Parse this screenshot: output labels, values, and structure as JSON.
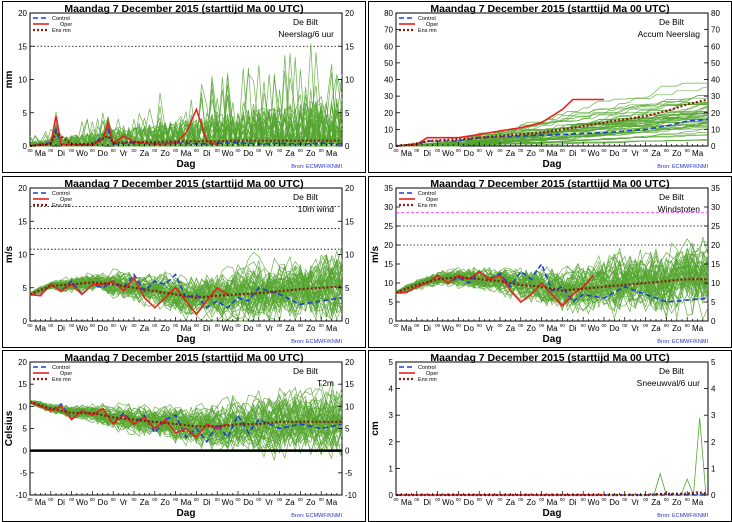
{
  "colors": {
    "control": "#1f3fd6",
    "oper": "#e8231e",
    "ens_mean": "#8b1c12",
    "members": "#55a630",
    "source": "#2233cc",
    "threshold": "#ff33ff"
  },
  "legend": {
    "control": "Control",
    "oper": "Oper",
    "ens_mean": "Ens mn"
  },
  "shared": {
    "header": "Maandag    7 December  2015   (starttijd  Ma 00 UTC)",
    "location": "De Bilt",
    "source": "Bron: ECMWF/KNMI",
    "xlabel": "Dag",
    "day_labels": [
      "Ma",
      "Di",
      "Wo",
      "Do",
      "Vr",
      "Za",
      "Zo",
      "Ma",
      "Di",
      "Wo",
      "Do",
      "Vr",
      "Za",
      "Zo",
      "Ma"
    ],
    "hour_tick_label": "00"
  },
  "chart_data": [
    {
      "id": "precip",
      "type": "line",
      "title": "Neerslag/6 uur",
      "ylabel": "mm",
      "ylim": [
        0,
        20
      ],
      "yticks": [
        0,
        5,
        10,
        15,
        20
      ],
      "dotted_lines": [
        15
      ],
      "series": [
        {
          "name": "Control",
          "x": [
            0,
            0.5,
            1,
            1.25,
            1.5,
            2,
            3,
            3.5,
            3.75,
            4,
            5,
            6,
            7,
            8,
            9,
            10,
            11,
            12,
            13,
            14,
            15
          ],
          "y": [
            0,
            0.3,
            0.5,
            2.5,
            0.3,
            0.2,
            0.1,
            1.5,
            2.5,
            0.3,
            0.5,
            0.3,
            0.5,
            0.3,
            0.4,
            0.5,
            0.3,
            0.4,
            0.3,
            0.4,
            0.3
          ]
        },
        {
          "name": "Oper",
          "x": [
            0,
            0.5,
            1,
            1.25,
            1.5,
            2,
            3,
            3.5,
            3.75,
            4,
            4.5,
            5,
            6,
            7,
            7.5,
            8,
            8.5,
            9
          ],
          "y": [
            0,
            0.2,
            0.4,
            4.5,
            0.3,
            0.2,
            0.1,
            1.0,
            3.5,
            0.4,
            1.5,
            0.6,
            0.3,
            0.4,
            2.0,
            5.5,
            0.8,
            0.2
          ]
        },
        {
          "name": "Ens mn",
          "x": [
            0,
            1,
            1.25,
            2,
            3,
            3.75,
            4,
            5,
            6,
            7,
            8,
            9,
            10,
            11,
            12,
            13,
            14,
            15
          ],
          "y": [
            0,
            0.3,
            2.0,
            0.3,
            0.3,
            1.5,
            0.5,
            0.6,
            0.6,
            0.7,
            0.7,
            0.7,
            0.8,
            0.8,
            0.8,
            0.8,
            0.8,
            0.8
          ]
        }
      ]
    },
    {
      "id": "accum",
      "type": "line",
      "title": "Accum Neerslag",
      "ylabel": "",
      "ylim": [
        0,
        80
      ],
      "yticks": [
        0,
        10,
        20,
        30,
        40,
        50,
        60,
        70,
        80
      ],
      "dotted_lines": [],
      "series": [
        {
          "name": "Control",
          "x": [
            0,
            1,
            1.5,
            3,
            4,
            6,
            8,
            10,
            12,
            13,
            14,
            15
          ],
          "y": [
            0,
            1,
            3,
            3,
            5,
            6,
            7,
            8,
            10,
            12,
            15,
            16
          ]
        },
        {
          "name": "Oper",
          "x": [
            0,
            1,
            1.5,
            3,
            4,
            5,
            6,
            7,
            8,
            8.5,
            9,
            10
          ],
          "y": [
            0,
            1,
            5,
            5,
            7,
            9,
            11,
            14,
            22,
            28,
            28,
            28
          ]
        },
        {
          "name": "Ens mn",
          "x": [
            0,
            1,
            1.5,
            3,
            4,
            5,
            6,
            7,
            8,
            9,
            10,
            11,
            12,
            13,
            14,
            15
          ],
          "y": [
            0,
            1,
            3,
            4,
            5,
            6,
            7,
            8,
            10,
            12,
            14,
            16,
            18,
            21,
            25,
            28
          ]
        }
      ]
    },
    {
      "id": "wind",
      "type": "line",
      "title": "10m wind",
      "ylabel": "m/s",
      "ylim": [
        0,
        20
      ],
      "yticks": [
        0,
        5,
        10,
        15,
        20
      ],
      "dotted_lines": [
        10.8,
        13.9,
        17.2
      ],
      "series": [
        {
          "name": "Control",
          "x": [
            0,
            0.5,
            1,
            1.5,
            2,
            2.5,
            3,
            3.5,
            4,
            4.5,
            5,
            5.5,
            6,
            6.5,
            7,
            7.5,
            8,
            8.5,
            9,
            9.5,
            10,
            10.5,
            11,
            12,
            13,
            14,
            15
          ],
          "y": [
            4,
            3.8,
            5.5,
            4.5,
            6,
            4,
            5.5,
            5,
            6,
            5,
            7,
            4.5,
            6,
            5.5,
            7,
            3.5,
            4,
            2,
            3,
            2,
            3.5,
            3,
            5,
            4,
            2.5,
            3,
            3.5
          ]
        },
        {
          "name": "Oper",
          "x": [
            0,
            0.5,
            1,
            1.5,
            2,
            2.5,
            3,
            3.5,
            4,
            4.5,
            5,
            5.5,
            6,
            6.5,
            7,
            7.5,
            8,
            8.5,
            9,
            9.5
          ],
          "y": [
            4,
            3.8,
            5.5,
            4.5,
            5.5,
            4,
            5.5,
            5.5,
            6,
            4.5,
            6.5,
            3.5,
            2,
            3.5,
            5,
            3,
            1,
            3,
            5,
            4
          ]
        },
        {
          "name": "Ens mn",
          "x": [
            0,
            1,
            2,
            3,
            4,
            5,
            6,
            7,
            8,
            9,
            10,
            11,
            12,
            13,
            14,
            15
          ],
          "y": [
            4,
            5.3,
            5.5,
            5.8,
            5.5,
            5,
            4.5,
            4,
            3.5,
            3.8,
            4,
            4.2,
            4.5,
            4.8,
            5,
            5.2
          ]
        }
      ]
    },
    {
      "id": "gust",
      "type": "line",
      "title": "Windstoten",
      "ylabel": "m/s",
      "ylim": [
        0,
        35
      ],
      "yticks": [
        0,
        5,
        10,
        15,
        20,
        25,
        30,
        35
      ],
      "dotted_lines": [
        20,
        25
      ],
      "threshold_lines": [
        28.5
      ],
      "series": [
        {
          "name": "Control",
          "x": [
            0,
            0.5,
            1,
            1.5,
            2,
            2.5,
            3,
            3.5,
            4,
            4.5,
            5,
            5.5,
            6,
            6.5,
            7,
            7.5,
            8,
            8.5,
            9,
            10,
            11,
            12,
            13,
            14,
            15
          ],
          "y": [
            7.5,
            7.5,
            9,
            10,
            12,
            10,
            11.5,
            10,
            13,
            11,
            12.5,
            9,
            13,
            11,
            15,
            8,
            9,
            5,
            7,
            6,
            9,
            7,
            5,
            5.5,
            6
          ]
        },
        {
          "name": "Oper",
          "x": [
            0,
            0.5,
            1,
            1.5,
            2,
            2.5,
            3,
            3.5,
            4,
            4.5,
            5,
            5.5,
            6,
            6.5,
            7,
            7.5,
            8,
            8.5,
            9,
            9.5
          ],
          "y": [
            7.5,
            7.5,
            9,
            10,
            12,
            10,
            12,
            11,
            13,
            11,
            12,
            8,
            5,
            7,
            10,
            7,
            4,
            7,
            9,
            12
          ]
        },
        {
          "name": "Ens mn",
          "x": [
            0,
            1,
            2,
            3,
            4,
            5,
            6,
            7,
            8,
            9,
            10,
            11,
            12,
            13,
            14,
            15
          ],
          "y": [
            7.5,
            9.5,
            11,
            11.5,
            11,
            10.5,
            9.5,
            9,
            8,
            8.5,
            9,
            9.5,
            10,
            10.5,
            11,
            11
          ]
        }
      ]
    },
    {
      "id": "temp",
      "type": "line",
      "title": "T2m",
      "ylabel": "Celsius",
      "ylim": [
        -10,
        20
      ],
      "yticks": [
        -10,
        -5,
        0,
        5,
        10,
        15,
        20
      ],
      "dotted_lines": [],
      "zero_line": true,
      "series": [
        {
          "name": "Control",
          "x": [
            0,
            0.5,
            1,
            1.5,
            2,
            2.5,
            3,
            3.5,
            4,
            4.5,
            5,
            5.5,
            6,
            6.5,
            7,
            7.5,
            8,
            8.5,
            9,
            9.5,
            10,
            10.5,
            11,
            12,
            13,
            14,
            15
          ],
          "y": [
            11,
            10,
            9,
            10.5,
            7,
            9,
            8,
            9.5,
            6,
            8.5,
            6,
            8,
            4,
            7,
            8,
            3,
            5,
            2,
            6,
            3,
            8,
            4,
            7,
            5,
            6,
            5,
            6
          ]
        },
        {
          "name": "Oper",
          "x": [
            0,
            0.5,
            1,
            1.5,
            2,
            2.5,
            3,
            3.5,
            4,
            4.5,
            5,
            5.5,
            6,
            6.5,
            7,
            7.5,
            8,
            8.5,
            9,
            9.5
          ],
          "y": [
            11,
            10,
            9,
            10,
            7,
            9,
            8,
            9.5,
            6,
            8,
            6,
            7.5,
            5,
            7,
            4,
            5,
            3,
            6,
            5,
            6
          ]
        },
        {
          "name": "Ens mn",
          "x": [
            0,
            1,
            2,
            3,
            4,
            5,
            6,
            7,
            8,
            9,
            10,
            11,
            12,
            13,
            14,
            15
          ],
          "y": [
            11,
            9.5,
            8.5,
            8.5,
            7.5,
            7,
            6.5,
            6,
            5.5,
            5.5,
            6,
            6,
            6.5,
            6.5,
            6.5,
            6.5
          ]
        }
      ]
    },
    {
      "id": "snow",
      "type": "line",
      "title": "Sneeuwval/6 uur",
      "ylabel": "cm",
      "ylim": [
        0,
        5
      ],
      "yticks": [
        0,
        1,
        2,
        3,
        4,
        5
      ],
      "dotted_lines": [],
      "series": [
        {
          "name": "Control",
          "x": [
            0,
            15
          ],
          "y": [
            0,
            0
          ]
        },
        {
          "name": "Oper",
          "x": [
            0,
            10
          ],
          "y": [
            0,
            0
          ]
        },
        {
          "name": "Ens mn",
          "x": [
            0,
            12,
            13,
            14,
            14.5,
            15
          ],
          "y": [
            0,
            0,
            0.05,
            0.05,
            0.1,
            0.05
          ]
        }
      ],
      "member_spikes": [
        {
          "x": 12.7,
          "y": 0.8
        },
        {
          "x": 14.0,
          "y": 0.6
        },
        {
          "x": 14.6,
          "y": 2.9
        }
      ]
    }
  ]
}
